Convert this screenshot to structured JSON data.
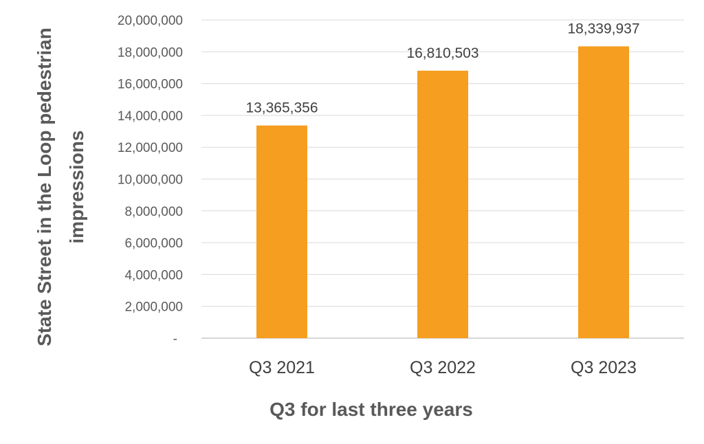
{
  "chart_data": {
    "type": "bar",
    "categories": [
      "Q3 2021",
      "Q3 2022",
      "Q3 2023"
    ],
    "values": [
      13365356,
      16810503,
      18339937
    ],
    "data_labels": [
      "13,365,356",
      "16,810,503",
      "18,339,937"
    ],
    "xlabel": "Q3 for last three  years",
    "ylabel": "State Street in the Loop pedestrian impressions",
    "ylabel_lines": [
      "State Street in the Loop pedestrian",
      "impressions"
    ],
    "ylim": [
      0,
      20000000
    ],
    "yticks": [
      0,
      2000000,
      4000000,
      6000000,
      8000000,
      10000000,
      12000000,
      14000000,
      16000000,
      18000000,
      20000000
    ],
    "ytick_labels": [
      "-",
      "2,000,000",
      "4,000,000",
      "6,000,000",
      "8,000,000",
      "10,000,000",
      "12,000,000",
      "14,000,000",
      "16,000,000",
      "18,000,000",
      "20,000,000"
    ],
    "grid": true,
    "legend": "none",
    "colors": {
      "bar": "#F59E20",
      "grid": "#D9D9D9",
      "axis": "#BFBFBF"
    }
  }
}
